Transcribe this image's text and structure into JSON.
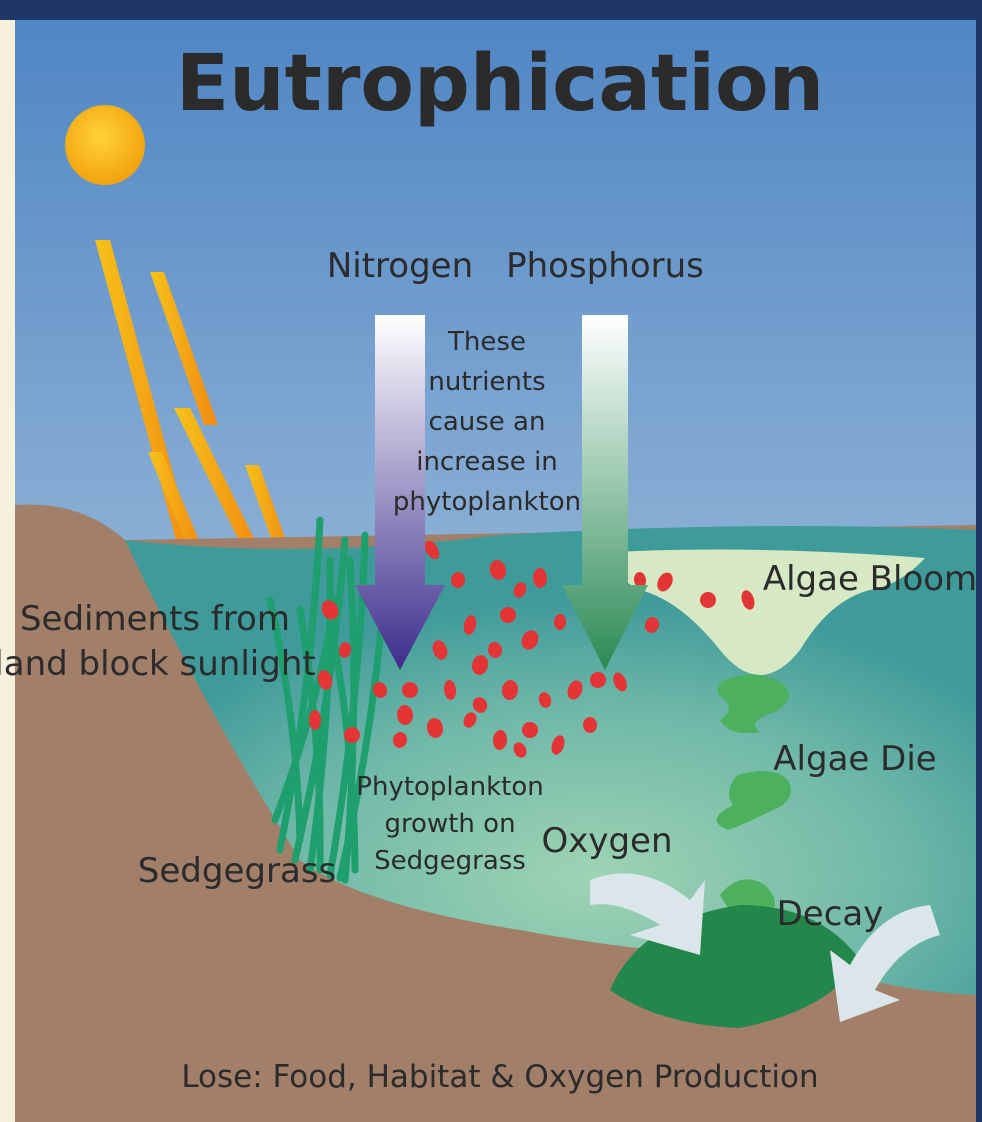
{
  "title": "Eutrophication",
  "labels": {
    "nitrogen": "Nitrogen",
    "phosphorus": "Phosphorus",
    "nutrients_note": [
      "These",
      "nutrients",
      "cause an",
      "increase in",
      "phytoplankton"
    ],
    "algae_bloom": "Algae Bloom",
    "sediments": [
      "Sediments from",
      "land block sunlight"
    ],
    "algae_die": "Algae Die",
    "phytoplankton_growth": [
      "Phytoplankton",
      "growth on",
      "Sedgegrass"
    ],
    "oxygen": "Oxygen",
    "sedgegrass": "Sedgegrass",
    "decay": "Decay"
  },
  "footer": "Lose: Food, Habitat & Oxygen Production"
}
